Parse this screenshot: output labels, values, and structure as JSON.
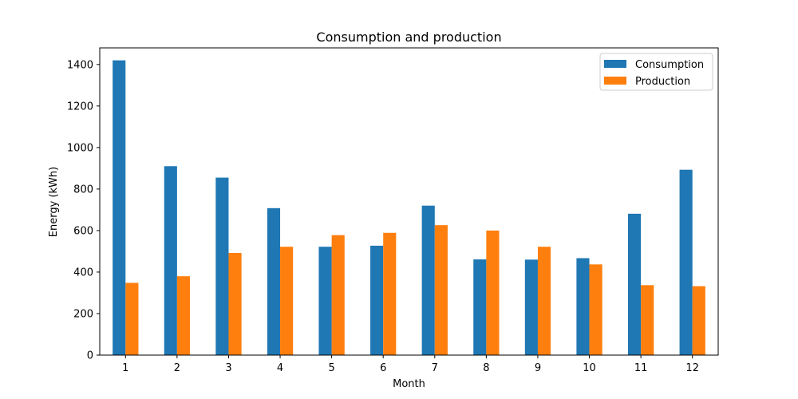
{
  "chart_data": {
    "type": "bar",
    "title": "Consumption and production",
    "xlabel": "Month",
    "ylabel": "Energy (kWh)",
    "ylim": [
      0,
      1480
    ],
    "yticks": [
      0,
      200,
      400,
      600,
      800,
      1000,
      1200,
      1400
    ],
    "categories": [
      "1",
      "2",
      "3",
      "4",
      "5",
      "6",
      "7",
      "8",
      "9",
      "10",
      "11",
      "12"
    ],
    "series": [
      {
        "name": "Consumption",
        "color": "#1f77b4",
        "values": [
          1420,
          910,
          855,
          708,
          522,
          527,
          720,
          461,
          460,
          467,
          681,
          893
        ]
      },
      {
        "name": "Production",
        "color": "#ff7f0e",
        "values": [
          348,
          380,
          492,
          522,
          578,
          589,
          626,
          600,
          522,
          437,
          337,
          332
        ]
      }
    ],
    "legend_position": "top-right",
    "grid": false
  }
}
